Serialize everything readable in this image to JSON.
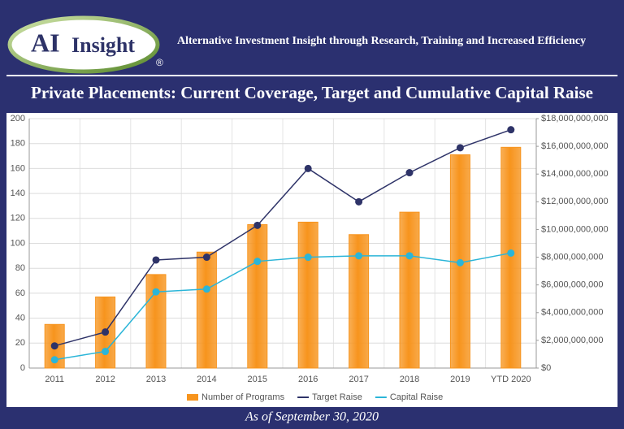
{
  "header": {
    "logo_ai": "AI",
    "logo_insight": "Insight",
    "logo_mark": "®",
    "tagline": "Alternative Investment Insight through Research, Training and Increased Efficiency"
  },
  "footer": "As of  September 30, 2020",
  "chart_data": {
    "type": "bar",
    "title": "Private Placements: Current Coverage, Target and Cumulative Capital Raise",
    "categories": [
      "2011",
      "2012",
      "2013",
      "2014",
      "2015",
      "2016",
      "2017",
      "2018",
      "2019",
      "YTD 2020"
    ],
    "series": [
      {
        "name": "Number of Programs",
        "type": "bar",
        "color": "#f7941d",
        "values": [
          35,
          57,
          75,
          93,
          115,
          117,
          107,
          125,
          171,
          177
        ]
      },
      {
        "name": "Target Raise",
        "type": "line",
        "axis": "y2",
        "color": "#2e3368",
        "values": [
          1600000000,
          2600000000,
          7800000000,
          8000000000,
          10300000000,
          14400000000,
          12000000000,
          14100000000,
          15900000000,
          17200000000
        ]
      },
      {
        "name": "Capital Raise",
        "type": "line",
        "axis": "y2",
        "color": "#2bb5d8",
        "values": [
          600000000,
          1200000000,
          5500000000,
          5700000000,
          7700000000,
          8000000000,
          8100000000,
          8100000000,
          7600000000,
          8300000000
        ]
      }
    ],
    "ylim": [
      0,
      200
    ],
    "yticks": [
      0,
      20,
      40,
      60,
      80,
      100,
      120,
      140,
      160,
      180,
      200
    ],
    "y2lim": [
      0,
      18000000000
    ],
    "y2ticks": [
      {
        "value": 0,
        "label": "$0"
      },
      {
        "value": 2000000000,
        "label": "$2,000,000,000"
      },
      {
        "value": 4000000000,
        "label": "$4,000,000,000"
      },
      {
        "value": 6000000000,
        "label": "$6,000,000,000"
      },
      {
        "value": 8000000000,
        "label": "$8,000,000,000"
      },
      {
        "value": 10000000000,
        "label": "$10,000,000,000"
      },
      {
        "value": 12000000000,
        "label": "$12,000,000,000"
      },
      {
        "value": 14000000000,
        "label": "$14,000,000,000"
      },
      {
        "value": 16000000000,
        "label": "$16,000,000,000"
      },
      {
        "value": 18000000000,
        "label": "$18,000,000,000"
      }
    ],
    "grid": true,
    "legend": "bottom"
  }
}
